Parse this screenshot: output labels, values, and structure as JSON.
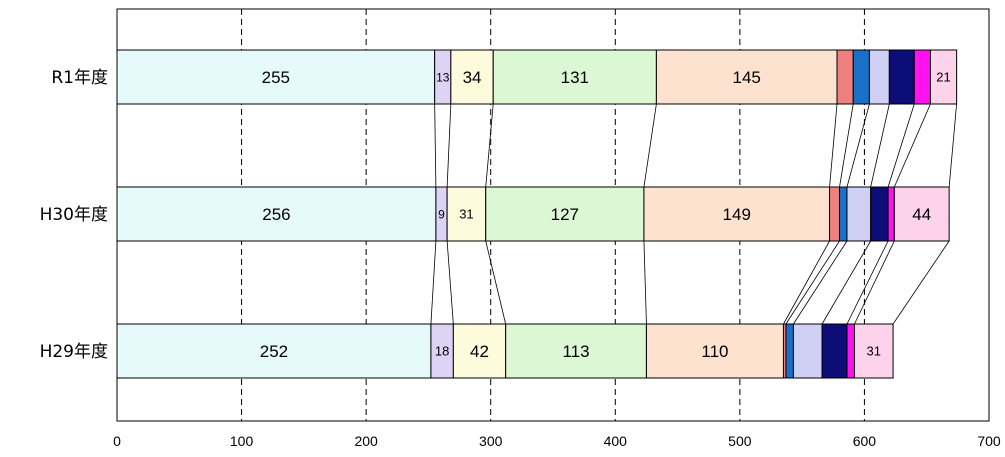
{
  "chart_data": {
    "type": "bar",
    "orientation": "horizontal",
    "stacked": true,
    "series_lines": true,
    "title": "",
    "xlabel": "",
    "ylabel": "",
    "xlim": [
      0,
      700
    ],
    "x_ticks": [
      "0",
      "100",
      "200",
      "300",
      "400",
      "500",
      "600",
      "700"
    ],
    "grid": "vertical dashed",
    "categories": [
      "R1年度",
      "H30年度",
      "H29年度"
    ],
    "series": [
      {
        "color": "#e6fafc",
        "values": [
          255,
          256,
          252
        ],
        "labels": [
          "255",
          "256",
          "252"
        ]
      },
      {
        "color": "#ddd4f5",
        "values": [
          13,
          9,
          18
        ],
        "labels": [
          "13",
          "9",
          "18"
        ]
      },
      {
        "color": "#fdfbdc",
        "values": [
          34,
          31,
          42
        ],
        "labels": [
          "34",
          "31",
          "42"
        ]
      },
      {
        "color": "#dcf7d4",
        "values": [
          131,
          127,
          113
        ],
        "labels": [
          "131",
          "127",
          "113"
        ]
      },
      {
        "color": "#fde2d0",
        "values": [
          145,
          149,
          110
        ],
        "labels": [
          "145",
          "149",
          "110"
        ]
      },
      {
        "color": "#f08080",
        "values": [
          13,
          8,
          2
        ],
        "labels": [
          "",
          "",
          ""
        ]
      },
      {
        "color": "#1a6fc9",
        "values": [
          13,
          6,
          6
        ],
        "labels": [
          "",
          "",
          ""
        ]
      },
      {
        "color": "#cfd0f4",
        "values": [
          16,
          19,
          23
        ],
        "labels": [
          "",
          "",
          ""
        ]
      },
      {
        "color": "#0d0d78",
        "values": [
          20,
          14,
          20
        ],
        "labels": [
          "",
          "",
          ""
        ]
      },
      {
        "color": "#ff11f0",
        "values": [
          13,
          5,
          6
        ],
        "labels": [
          "",
          "",
          ""
        ]
      },
      {
        "color": "#fcd3ea",
        "values": [
          21,
          44,
          31
        ],
        "labels": [
          "21",
          "44",
          "31"
        ]
      }
    ]
  }
}
